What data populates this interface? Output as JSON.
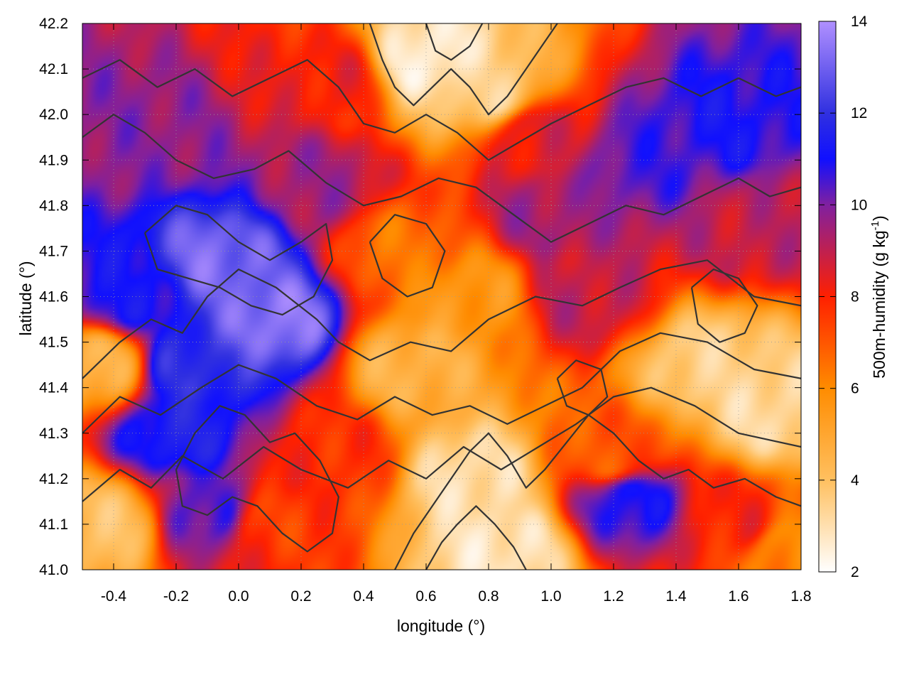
{
  "chart_data": {
    "type": "heatmap",
    "title": "",
    "xlabel": "longitude (°)",
    "ylabel": "latitude (°)",
    "xlim": [
      -0.5,
      1.8
    ],
    "ylim": [
      41.0,
      42.2
    ],
    "x_ticks": [
      -0.4,
      -0.2,
      0.0,
      0.2,
      0.4,
      0.6,
      0.8,
      1.0,
      1.2,
      1.4,
      1.6,
      1.8
    ],
    "x_tick_labels": [
      "-0.4",
      "-0.2",
      "0.0",
      "0.2",
      "0.4",
      "0.6",
      "0.8",
      "1.0",
      "1.2",
      "1.4",
      "1.6",
      "1.8"
    ],
    "y_ticks": [
      41.0,
      41.1,
      41.2,
      41.3,
      41.4,
      41.5,
      41.6,
      41.7,
      41.8,
      41.9,
      42.0,
      42.1,
      42.2
    ],
    "y_tick_labels": [
      "41.0",
      "41.1",
      "41.2",
      "41.3",
      "41.4",
      "41.5",
      "41.6",
      "41.7",
      "41.8",
      "41.9",
      "42.0",
      "42.1",
      "42.2"
    ],
    "grid": true,
    "colorbar": {
      "label_main": "500m-humidity (g kg",
      "label_sup": "-1",
      "label_end": ")",
      "range": [
        2,
        14
      ],
      "ticks": [
        2,
        4,
        6,
        8,
        10,
        12,
        14
      ],
      "tick_labels": [
        "2",
        "4",
        "6",
        "8",
        "10",
        "12",
        "14"
      ],
      "stops": [
        {
          "v": 2,
          "color": "#ffffff"
        },
        {
          "v": 4,
          "color": "#ffc060"
        },
        {
          "v": 6,
          "color": "#ff8c00"
        },
        {
          "v": 8,
          "color": "#ff2000"
        },
        {
          "v": 10,
          "color": "#8020a0"
        },
        {
          "v": 11,
          "color": "#1010ff"
        },
        {
          "v": 12,
          "color": "#3030e0"
        },
        {
          "v": 14,
          "color": "#b090ff"
        }
      ]
    },
    "field_features": [
      {
        "lon": -0.05,
        "lat": 41.68,
        "value": 13.2
      },
      {
        "lon": 0.12,
        "lat": 41.55,
        "value": 13.5
      },
      {
        "lon": -0.15,
        "lat": 41.45,
        "value": 12.0
      },
      {
        "lon": -0.2,
        "lat": 41.3,
        "value": 11.5
      },
      {
        "lon": -0.35,
        "lat": 41.6,
        "value": 11.0
      },
      {
        "lon": -0.3,
        "lat": 41.95,
        "value": 9.8
      },
      {
        "lon": 0.3,
        "lat": 42.08,
        "value": 8.2
      },
      {
        "lon": 0.6,
        "lat": 42.12,
        "value": 2.5
      },
      {
        "lon": 0.8,
        "lat": 42.05,
        "value": 3.5
      },
      {
        "lon": 0.95,
        "lat": 41.95,
        "value": 8.5
      },
      {
        "lon": 1.3,
        "lat": 41.9,
        "value": 10.5
      },
      {
        "lon": 1.55,
        "lat": 41.98,
        "value": 11.0
      },
      {
        "lon": 1.65,
        "lat": 41.75,
        "value": 9.0
      },
      {
        "lon": 0.5,
        "lat": 41.7,
        "value": 6.5
      },
      {
        "lon": 0.75,
        "lat": 41.6,
        "value": 5.5
      },
      {
        "lon": 1.1,
        "lat": 41.6,
        "value": 9.0
      },
      {
        "lon": 0.55,
        "lat": 41.45,
        "value": 4.5
      },
      {
        "lon": 0.75,
        "lat": 41.2,
        "value": 3.0
      },
      {
        "lon": 0.85,
        "lat": 41.05,
        "value": 2.8
      },
      {
        "lon": 1.5,
        "lat": 41.45,
        "value": 3.5
      },
      {
        "lon": 1.7,
        "lat": 41.35,
        "value": 3.2
      },
      {
        "lon": 1.25,
        "lat": 41.15,
        "value": 11.0
      },
      {
        "lon": 1.6,
        "lat": 41.1,
        "value": 8.0
      },
      {
        "lon": 1.75,
        "lat": 41.05,
        "value": 6.0
      },
      {
        "lon": 0.3,
        "lat": 41.25,
        "value": 7.8
      },
      {
        "lon": 0.1,
        "lat": 41.1,
        "value": 7.5
      },
      {
        "lon": -0.45,
        "lat": 41.45,
        "value": 4.5
      },
      {
        "lon": -0.42,
        "lat": 41.1,
        "value": 4.0
      },
      {
        "lon": -0.1,
        "lat": 41.12,
        "value": 10.5
      },
      {
        "lon": 0.25,
        "lat": 41.85,
        "value": 9.5
      },
      {
        "lon": 1.0,
        "lat": 41.78,
        "value": 9.5
      },
      {
        "lon": 1.2,
        "lat": 41.25,
        "value": 7.0
      }
    ],
    "contour_paths": [
      [
        [
          -0.5,
          41.42
        ],
        [
          -0.38,
          41.5
        ],
        [
          -0.28,
          41.55
        ],
        [
          -0.18,
          41.52
        ],
        [
          -0.1,
          41.6
        ],
        [
          0.0,
          41.66
        ],
        [
          0.12,
          41.62
        ],
        [
          0.25,
          41.55
        ],
        [
          0.32,
          41.5
        ],
        [
          0.42,
          41.46
        ],
        [
          0.55,
          41.5
        ],
        [
          0.68,
          41.48
        ],
        [
          0.8,
          41.55
        ],
        [
          0.95,
          41.6
        ],
        [
          1.1,
          41.58
        ],
        [
          1.22,
          41.62
        ],
        [
          1.35,
          41.66
        ],
        [
          1.5,
          41.68
        ],
        [
          1.65,
          41.6
        ],
        [
          1.8,
          41.58
        ]
      ],
      [
        [
          -0.5,
          41.3
        ],
        [
          -0.38,
          41.38
        ],
        [
          -0.25,
          41.34
        ],
        [
          -0.12,
          41.4
        ],
        [
          0.0,
          41.45
        ],
        [
          0.12,
          41.42
        ],
        [
          0.25,
          41.36
        ],
        [
          0.38,
          41.33
        ],
        [
          0.5,
          41.38
        ],
        [
          0.62,
          41.34
        ],
        [
          0.74,
          41.36
        ],
        [
          0.86,
          41.32
        ],
        [
          0.98,
          41.36
        ],
        [
          1.1,
          41.4
        ],
        [
          1.22,
          41.48
        ],
        [
          1.35,
          41.52
        ],
        [
          1.5,
          41.5
        ],
        [
          1.65,
          41.44
        ],
        [
          1.8,
          41.42
        ]
      ],
      [
        [
          -0.5,
          41.15
        ],
        [
          -0.38,
          41.22
        ],
        [
          -0.28,
          41.18
        ],
        [
          -0.18,
          41.25
        ],
        [
          -0.05,
          41.2
        ],
        [
          0.08,
          41.27
        ],
        [
          0.2,
          41.22
        ],
        [
          0.35,
          41.18
        ],
        [
          0.48,
          41.24
        ],
        [
          0.6,
          41.2
        ],
        [
          0.72,
          41.27
        ],
        [
          0.84,
          41.22
        ],
        [
          0.96,
          41.27
        ],
        [
          1.08,
          41.32
        ],
        [
          1.2,
          41.38
        ],
        [
          1.32,
          41.4
        ],
        [
          1.46,
          41.36
        ],
        [
          1.6,
          41.3
        ],
        [
          1.8,
          41.27
        ]
      ],
      [
        [
          0.5,
          41.0
        ],
        [
          0.56,
          41.08
        ],
        [
          0.62,
          41.14
        ],
        [
          0.68,
          41.2
        ],
        [
          0.74,
          41.26
        ],
        [
          0.8,
          41.3
        ],
        [
          0.86,
          41.25
        ],
        [
          0.92,
          41.18
        ],
        [
          0.98,
          41.22
        ],
        [
          1.05,
          41.28
        ],
        [
          1.12,
          41.34
        ],
        [
          1.2,
          41.3
        ],
        [
          1.28,
          41.24
        ],
        [
          1.36,
          41.2
        ],
        [
          1.44,
          41.22
        ],
        [
          1.52,
          41.18
        ],
        [
          1.62,
          41.2
        ],
        [
          1.72,
          41.16
        ],
        [
          1.8,
          41.14
        ]
      ],
      [
        [
          0.6,
          41.0
        ],
        [
          0.65,
          41.06
        ],
        [
          0.7,
          41.1
        ],
        [
          0.76,
          41.14
        ],
        [
          0.82,
          41.1
        ],
        [
          0.88,
          41.05
        ],
        [
          0.92,
          41.0
        ]
      ],
      [
        [
          -0.5,
          41.95
        ],
        [
          -0.4,
          42.0
        ],
        [
          -0.3,
          41.96
        ],
        [
          -0.2,
          41.9
        ],
        [
          -0.08,
          41.86
        ],
        [
          0.05,
          41.88
        ],
        [
          0.16,
          41.92
        ],
        [
          0.28,
          41.85
        ],
        [
          0.4,
          41.8
        ],
        [
          0.52,
          41.82
        ],
        [
          0.64,
          41.86
        ],
        [
          0.76,
          41.84
        ],
        [
          0.88,
          41.78
        ],
        [
          1.0,
          41.72
        ],
        [
          1.12,
          41.76
        ],
        [
          1.24,
          41.8
        ],
        [
          1.36,
          41.78
        ],
        [
          1.48,
          41.82
        ],
        [
          1.6,
          41.86
        ],
        [
          1.7,
          41.82
        ],
        [
          1.8,
          41.84
        ]
      ],
      [
        [
          -0.5,
          42.08
        ],
        [
          -0.38,
          42.12
        ],
        [
          -0.26,
          42.06
        ],
        [
          -0.14,
          42.1
        ],
        [
          -0.02,
          42.04
        ],
        [
          0.1,
          42.08
        ],
        [
          0.22,
          42.12
        ],
        [
          0.32,
          42.06
        ],
        [
          0.4,
          41.98
        ],
        [
          0.5,
          41.96
        ],
        [
          0.6,
          42.0
        ],
        [
          0.7,
          41.96
        ],
        [
          0.8,
          41.9
        ],
        [
          0.9,
          41.94
        ],
        [
          1.0,
          41.98
        ],
        [
          1.12,
          42.02
        ],
        [
          1.24,
          42.06
        ],
        [
          1.36,
          42.08
        ],
        [
          1.48,
          42.04
        ],
        [
          1.6,
          42.08
        ],
        [
          1.72,
          42.04
        ],
        [
          1.8,
          42.06
        ]
      ],
      [
        [
          0.42,
          42.2
        ],
        [
          0.46,
          42.12
        ],
        [
          0.5,
          42.06
        ],
        [
          0.56,
          42.02
        ],
        [
          0.62,
          42.06
        ],
        [
          0.68,
          42.1
        ],
        [
          0.74,
          42.06
        ],
        [
          0.8,
          42.0
        ],
        [
          0.86,
          42.04
        ],
        [
          0.92,
          42.1
        ],
        [
          0.98,
          42.16
        ],
        [
          1.02,
          42.2
        ]
      ],
      [
        [
          0.6,
          42.2
        ],
        [
          0.63,
          42.14
        ],
        [
          0.68,
          42.12
        ],
        [
          0.74,
          42.15
        ],
        [
          0.78,
          42.2
        ]
      ],
      [
        [
          -0.2,
          41.22
        ],
        [
          -0.14,
          41.3
        ],
        [
          -0.06,
          41.36
        ],
        [
          0.02,
          41.34
        ],
        [
          0.1,
          41.28
        ],
        [
          0.18,
          41.3
        ],
        [
          0.26,
          41.24
        ],
        [
          0.32,
          41.16
        ],
        [
          0.3,
          41.08
        ],
        [
          0.22,
          41.04
        ],
        [
          0.14,
          41.08
        ],
        [
          0.06,
          41.14
        ],
        [
          -0.02,
          41.16
        ],
        [
          -0.1,
          41.12
        ],
        [
          -0.18,
          41.14
        ],
        [
          -0.2,
          41.22
        ]
      ],
      [
        [
          -0.3,
          41.74
        ],
        [
          -0.2,
          41.8
        ],
        [
          -0.1,
          41.78
        ],
        [
          0.0,
          41.72
        ],
        [
          0.1,
          41.68
        ],
        [
          0.2,
          41.72
        ],
        [
          0.28,
          41.76
        ],
        [
          0.3,
          41.68
        ],
        [
          0.24,
          41.6
        ],
        [
          0.14,
          41.56
        ],
        [
          0.04,
          41.58
        ],
        [
          -0.06,
          41.62
        ],
        [
          -0.16,
          41.64
        ],
        [
          -0.26,
          41.66
        ],
        [
          -0.3,
          41.74
        ]
      ],
      [
        [
          1.45,
          41.62
        ],
        [
          1.52,
          41.66
        ],
        [
          1.6,
          41.64
        ],
        [
          1.66,
          41.58
        ],
        [
          1.62,
          41.52
        ],
        [
          1.54,
          41.5
        ],
        [
          1.47,
          41.54
        ],
        [
          1.45,
          41.62
        ]
      ],
      [
        [
          0.42,
          41.72
        ],
        [
          0.5,
          41.78
        ],
        [
          0.6,
          41.76
        ],
        [
          0.66,
          41.7
        ],
        [
          0.62,
          41.62
        ],
        [
          0.54,
          41.6
        ],
        [
          0.46,
          41.64
        ],
        [
          0.42,
          41.72
        ]
      ],
      [
        [
          1.02,
          41.42
        ],
        [
          1.08,
          41.46
        ],
        [
          1.16,
          41.44
        ],
        [
          1.18,
          41.38
        ],
        [
          1.12,
          41.34
        ],
        [
          1.05,
          41.36
        ],
        [
          1.02,
          41.42
        ]
      ]
    ]
  }
}
